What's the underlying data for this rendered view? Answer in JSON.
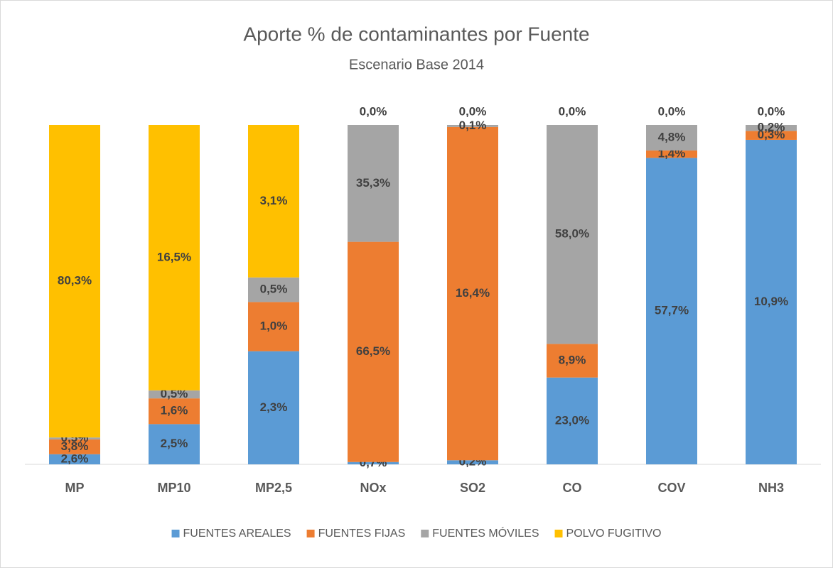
{
  "chart_data": {
    "type": "bar",
    "stacking": "percent",
    "title": "Aporte % de contaminantes por Fuente",
    "subtitle": "Escenario Base 2014",
    "categories": [
      "MP",
      "MP10",
      "MP2,5",
      "NOx",
      "SO2",
      "CO",
      "COV",
      "NH3"
    ],
    "legend": "bottom",
    "series": [
      {
        "name": "FUENTES AREALES",
        "color": "#5b9bd5",
        "values": [
          2.6,
          2.5,
          2.3,
          0.7,
          0.2,
          23.0,
          57.7,
          10.9
        ],
        "value_labels": [
          "2,6%",
          "2,5%",
          "2,3%",
          "0,7%",
          "0,2%",
          "23,0%",
          "57,7%",
          "10,9%"
        ]
      },
      {
        "name": "FUENTES FIJAS",
        "color": "#ed7d31",
        "values": [
          3.8,
          1.6,
          1.0,
          66.5,
          16.4,
          8.9,
          1.4,
          0.3
        ],
        "value_labels": [
          "3,8%",
          "1,6%",
          "1,0%",
          "66,5%",
          "16,4%",
          "8,9%",
          "1,4%",
          "0,3%"
        ]
      },
      {
        "name": "FUENTES MÓVILES",
        "color": "#a5a5a5",
        "values": [
          0.5,
          0.5,
          0.5,
          35.3,
          0.1,
          58.0,
          4.8,
          0.2
        ],
        "value_labels": [
          "0,5%",
          "0,5%",
          "0,5%",
          "35,3%",
          "0,1%",
          "58,0%",
          "4,8%",
          "0,2%"
        ]
      },
      {
        "name": "POLVO FUGITIVO",
        "color": "#ffc000",
        "values": [
          80.3,
          16.5,
          3.1,
          0.0,
          0.0,
          0.0,
          0.0,
          0.0
        ],
        "value_labels": [
          "80,3%",
          "16,5%",
          "3,1%",
          "0,0%",
          "0,0%",
          "0,0%",
          "0,0%",
          "0,0%"
        ]
      }
    ]
  }
}
